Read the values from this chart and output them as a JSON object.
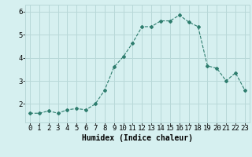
{
  "x": [
    0,
    1,
    2,
    3,
    4,
    5,
    6,
    7,
    8,
    9,
    10,
    11,
    12,
    13,
    14,
    15,
    16,
    17,
    18,
    19,
    20,
    21,
    22,
    23
  ],
  "y": [
    1.6,
    1.6,
    1.7,
    1.6,
    1.75,
    1.8,
    1.75,
    2.0,
    2.6,
    3.6,
    4.05,
    4.65,
    5.35,
    5.35,
    5.6,
    5.6,
    5.85,
    5.55,
    5.35,
    3.65,
    3.55,
    3.0,
    3.35,
    2.6
  ],
  "line_color": "#2e7d6e",
  "marker": "D",
  "marker_size": 2,
  "bg_color": "#d6f0f0",
  "grid_color": "#b8d8d8",
  "xlabel": "Humidex (Indice chaleur)",
  "ylim": [
    1.2,
    6.3
  ],
  "xlim": [
    -0.5,
    23.5
  ],
  "yticks": [
    2,
    3,
    4,
    5,
    6
  ],
  "xlabel_fontsize": 7,
  "tick_fontsize": 6.5
}
